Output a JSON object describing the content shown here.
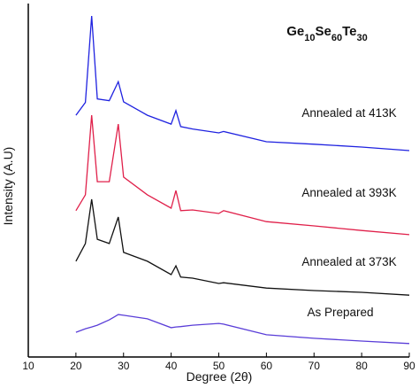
{
  "chart_data": {
    "type": "line",
    "title": "Ge10Se60Te30",
    "x_label": "Degree (2θ)",
    "y_label": "Intensity (A.U)",
    "x": [
      20,
      22,
      23.3,
      24.5,
      27,
      28.9,
      30,
      35,
      40,
      41,
      42,
      44.5,
      50,
      51,
      60,
      70,
      80,
      90
    ],
    "series": [
      {
        "name": "Annealed at 413K",
        "color": "#1f22e0",
        "values": [
          68.4,
          72,
          96.5,
          73,
          72.5,
          77.9,
          72.2,
          68.4,
          65.9,
          69.7,
          65.2,
          64.5,
          63.4,
          63.8,
          60.9,
          60.2,
          59.4,
          58.4
        ]
      },
      {
        "name": "Annealed at 393K",
        "color": "#e0204a",
        "values": [
          41.4,
          45.9,
          68.4,
          49.6,
          49.6,
          65.9,
          50.9,
          45.9,
          42.1,
          47.1,
          41.4,
          41.6,
          40.6,
          41.4,
          38.3,
          37.1,
          35.8,
          34.6
        ]
      },
      {
        "name": "Annealed at 373K",
        "color": "#111111",
        "values": [
          27.1,
          32.1,
          44.6,
          33.3,
          32.1,
          39.6,
          29.6,
          27.1,
          23.3,
          25.8,
          22.6,
          22.3,
          20.8,
          21.0,
          19.5,
          18.8,
          18.3,
          17.5
        ]
      },
      {
        "name": "As Prepared",
        "color": "#5a3ed8",
        "values": [
          7.0,
          8.0,
          8.5,
          9.0,
          10.5,
          12.0,
          11.8,
          10.8,
          8.3,
          8.5,
          8.6,
          9.0,
          9.5,
          9.3,
          6.3,
          5.3,
          4.5,
          3.8
        ]
      }
    ],
    "xlim": [
      10,
      90
    ],
    "xticks": [
      10,
      20,
      30,
      40,
      50,
      60,
      70,
      80,
      90
    ],
    "ylim": [
      0,
      100
    ]
  }
}
